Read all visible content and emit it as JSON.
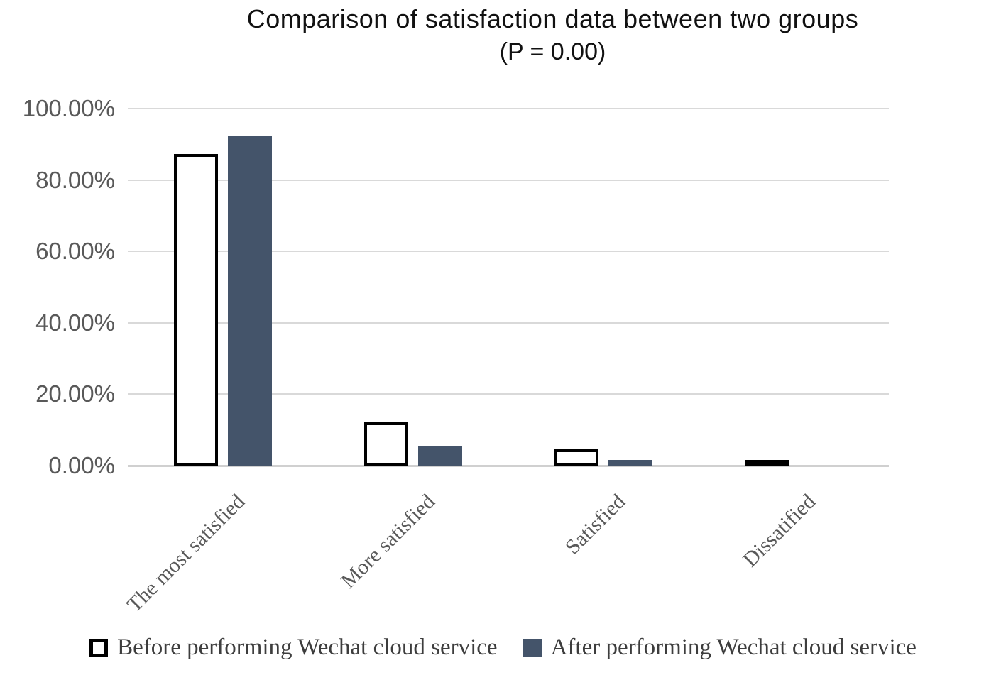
{
  "title": {
    "line1": "Comparison of satisfaction data between two groups",
    "line2": "(P = 0.00)"
  },
  "chart_data": {
    "type": "bar",
    "title": "Comparison of satisfaction data between two groups (P = 0.00)",
    "categories": [
      "The most satisfied",
      "More satisfied",
      "Satisfied",
      "Dissatified"
    ],
    "series": [
      {
        "name": "Before performing Wechat cloud service",
        "values": [
          87.3,
          12.1,
          4.5,
          0.8
        ],
        "fill": "#ffffff",
        "border": "#000000"
      },
      {
        "name": "After performing Wechat cloud service",
        "values": [
          92.4,
          5.5,
          1.5,
          0.0
        ],
        "fill": "#44546a",
        "border": null
      }
    ],
    "xlabel": "",
    "ylabel": "",
    "ylim": [
      0,
      100
    ],
    "ytick_step": 20,
    "ytick_labels": [
      "0.00%",
      "20.00%",
      "40.00%",
      "60.00%",
      "80.00%",
      "100.00%"
    ],
    "grid": true,
    "legend_position": "bottom"
  },
  "colors": {
    "after_bar": "#44546a",
    "before_bar_fill": "#ffffff",
    "before_bar_border": "#000000",
    "gridline": "#d9d9d9",
    "axis_line": "#d0d0d0",
    "tick_label": "#595959",
    "category_label": "#595959",
    "legend_text": "#3d3d3d",
    "title_text": "#111111"
  }
}
